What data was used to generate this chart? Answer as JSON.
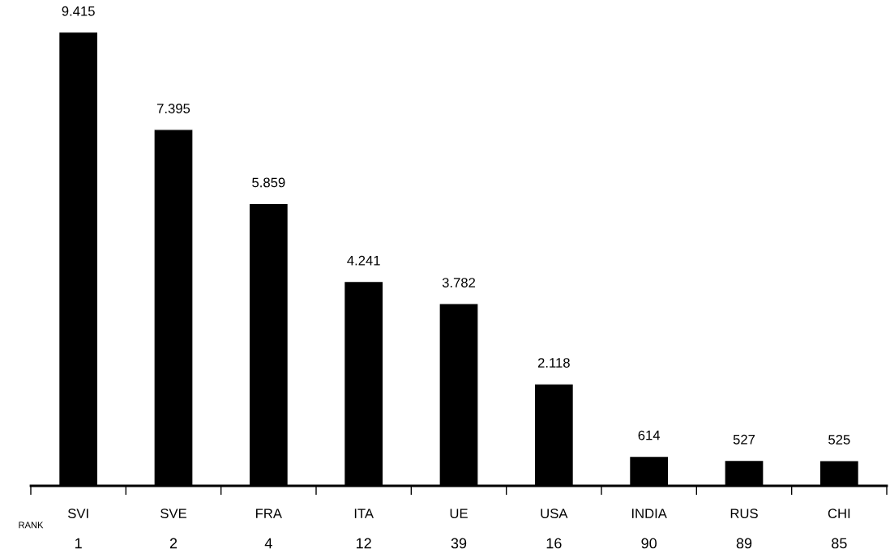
{
  "chart_data": {
    "type": "bar",
    "categories": [
      "SVI",
      "SVE",
      "FRA",
      "ITA",
      "UE",
      "USA",
      "INDIA",
      "RUS",
      "CHI"
    ],
    "values": [
      9415,
      7395,
      5859,
      4241,
      3782,
      2118,
      614,
      527,
      525
    ],
    "value_labels": [
      "9.415",
      "7.395",
      "5.859",
      "4.241",
      "3.782",
      "2.118",
      "614",
      "527",
      "525"
    ],
    "color": "#000000",
    "annotations": [
      "RANK",
      "1",
      "2",
      "4",
      "12",
      "39",
      "16",
      "90",
      "89",
      "85"
    ],
    "grid": false,
    "legend": false
  }
}
